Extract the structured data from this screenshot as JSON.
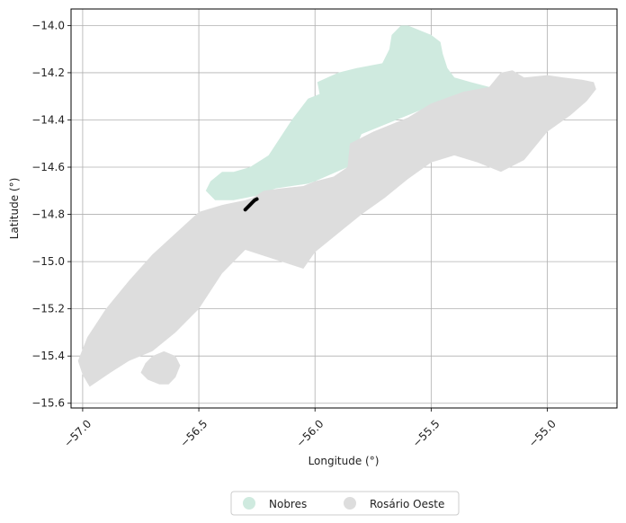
{
  "chart_data": {
    "type": "map",
    "xlabel": "Longitude (°)",
    "ylabel": "Latitude (°)",
    "xlim": [
      -57.05,
      -54.7
    ],
    "ylim": [
      -15.62,
      -13.93
    ],
    "x_ticks": [
      -57.0,
      -56.5,
      -56.0,
      -55.5,
      -55.0
    ],
    "x_tick_labels": [
      "−57.0",
      "−56.5",
      "−56.0",
      "−55.5",
      "−55.0"
    ],
    "y_ticks": [
      -14.0,
      -14.2,
      -14.4,
      -14.6,
      -14.8,
      -15.0,
      -15.2,
      -15.4,
      -15.6
    ],
    "y_tick_labels": [
      "−14.0",
      "−14.2",
      "−14.4",
      "−14.6",
      "−14.8",
      "−15.0",
      "−15.2",
      "−15.4",
      "−15.6"
    ],
    "grid": true,
    "legend_position": "bottom-center",
    "series": [
      {
        "name": "Nobres",
        "color": "#cfeadf",
        "polygon": [
          [
            -55.6,
            -14.0
          ],
          [
            -55.55,
            -14.02
          ],
          [
            -55.5,
            -14.04
          ],
          [
            -55.46,
            -14.07
          ],
          [
            -55.45,
            -14.12
          ],
          [
            -55.43,
            -14.18
          ],
          [
            -55.4,
            -14.22
          ],
          [
            -55.33,
            -14.24
          ],
          [
            -55.25,
            -14.26
          ],
          [
            -55.2,
            -14.27
          ],
          [
            -55.24,
            -14.29
          ],
          [
            -55.45,
            -14.32
          ],
          [
            -55.8,
            -14.46
          ],
          [
            -55.86,
            -14.6
          ],
          [
            -56.0,
            -14.66
          ],
          [
            -56.03,
            -14.67
          ],
          [
            -56.1,
            -14.68
          ],
          [
            -56.17,
            -14.69
          ],
          [
            -56.25,
            -14.72
          ],
          [
            -56.3,
            -14.73
          ],
          [
            -56.35,
            -14.74
          ],
          [
            -56.43,
            -14.74
          ],
          [
            -56.47,
            -14.7
          ],
          [
            -56.45,
            -14.66
          ],
          [
            -56.4,
            -14.62
          ],
          [
            -56.35,
            -14.62
          ],
          [
            -56.28,
            -14.6
          ],
          [
            -56.2,
            -14.55
          ],
          [
            -56.1,
            -14.4
          ],
          [
            -56.03,
            -14.31
          ],
          [
            -55.98,
            -14.29
          ],
          [
            -55.99,
            -14.24
          ],
          [
            -55.9,
            -14.2
          ],
          [
            -55.82,
            -14.18
          ],
          [
            -55.71,
            -14.16
          ],
          [
            -55.68,
            -14.1
          ],
          [
            -55.67,
            -14.04
          ],
          [
            -55.63,
            -14.0
          ]
        ]
      },
      {
        "name": "Rosário Oeste",
        "color": "#dddddd",
        "polygon": [
          [
            -54.8,
            -14.24
          ],
          [
            -54.85,
            -14.23
          ],
          [
            -54.93,
            -14.22
          ],
          [
            -55.0,
            -14.21
          ],
          [
            -55.1,
            -14.22
          ],
          [
            -55.15,
            -14.19
          ],
          [
            -55.2,
            -14.2
          ],
          [
            -55.25,
            -14.26
          ],
          [
            -55.36,
            -14.28
          ],
          [
            -55.5,
            -14.33
          ],
          [
            -55.6,
            -14.39
          ],
          [
            -55.75,
            -14.45
          ],
          [
            -55.85,
            -14.5
          ],
          [
            -55.86,
            -14.6
          ],
          [
            -55.92,
            -14.64
          ],
          [
            -56.0,
            -14.66
          ],
          [
            -56.05,
            -14.68
          ],
          [
            -56.15,
            -14.69
          ],
          [
            -56.22,
            -14.7
          ],
          [
            -56.27,
            -14.73
          ],
          [
            -56.3,
            -14.74
          ],
          [
            -56.4,
            -14.76
          ],
          [
            -56.5,
            -14.79
          ],
          [
            -56.6,
            -14.88
          ],
          [
            -56.7,
            -14.97
          ],
          [
            -56.8,
            -15.08
          ],
          [
            -56.9,
            -15.2
          ],
          [
            -56.98,
            -15.32
          ],
          [
            -57.02,
            -15.42
          ],
          [
            -57.0,
            -15.48
          ],
          [
            -56.97,
            -15.53
          ],
          [
            -56.88,
            -15.47
          ],
          [
            -56.8,
            -15.42
          ],
          [
            -56.7,
            -15.38
          ],
          [
            -56.6,
            -15.3
          ],
          [
            -56.5,
            -15.2
          ],
          [
            -56.4,
            -15.05
          ],
          [
            -56.3,
            -14.95
          ],
          [
            -56.05,
            -15.03
          ],
          [
            -56.0,
            -14.96
          ],
          [
            -55.9,
            -14.88
          ],
          [
            -55.8,
            -14.8
          ],
          [
            -55.7,
            -14.73
          ],
          [
            -55.6,
            -14.65
          ],
          [
            -55.5,
            -14.58
          ],
          [
            -55.4,
            -14.55
          ],
          [
            -55.3,
            -14.58
          ],
          [
            -55.2,
            -14.62
          ],
          [
            -55.1,
            -14.57
          ],
          [
            -55.0,
            -14.45
          ],
          [
            -54.9,
            -14.38
          ],
          [
            -54.83,
            -14.32
          ],
          [
            -54.79,
            -14.27
          ]
        ]
      },
      {
        "name": "Rosário Oeste",
        "color": "#dddddd",
        "polygon": [
          [
            -56.73,
            -15.43
          ],
          [
            -56.7,
            -15.4
          ],
          [
            -56.65,
            -15.38
          ],
          [
            -56.6,
            -15.4
          ],
          [
            -56.58,
            -15.44
          ],
          [
            -56.6,
            -15.49
          ],
          [
            -56.63,
            -15.52
          ],
          [
            -56.67,
            -15.52
          ],
          [
            -56.72,
            -15.5
          ],
          [
            -56.75,
            -15.47
          ]
        ]
      }
    ],
    "trace": {
      "color": "#000000",
      "points": [
        [
          -56.3,
          -14.78
        ],
        [
          -56.29,
          -14.77
        ],
        [
          -56.28,
          -14.76
        ],
        [
          -56.27,
          -14.75
        ],
        [
          -56.26,
          -14.74
        ],
        [
          -56.25,
          -14.735
        ]
      ]
    }
  },
  "legend": {
    "items": [
      {
        "label": "Nobres",
        "color": "#cfeadf"
      },
      {
        "label": "Rosário Oeste",
        "color": "#dddddd"
      }
    ]
  }
}
